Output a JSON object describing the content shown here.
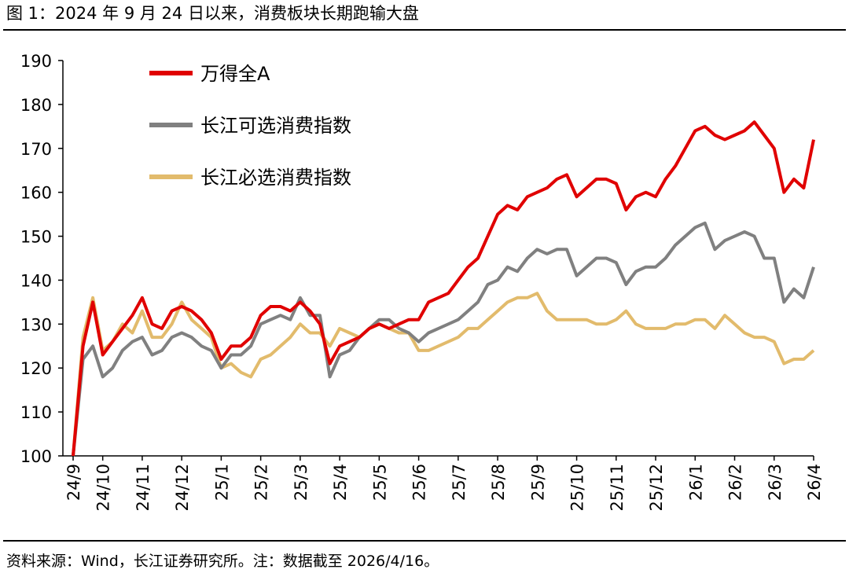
{
  "chart_data": {
    "type": "line",
    "title": "图 1：2024 年 9 月 24 日以来，消费板块长期跑输大盘",
    "source": "资料来源：Wind，长江证券研究所。注：数据截至 2026/4/16。",
    "categories": [
      "24/9",
      null,
      null,
      "24/10",
      null,
      null,
      null,
      "24/11",
      null,
      null,
      null,
      "24/12",
      null,
      null,
      null,
      "25/1",
      null,
      null,
      null,
      "25/2",
      null,
      null,
      null,
      "25/3",
      null,
      null,
      null,
      "25/4",
      null,
      null,
      null,
      "25/5",
      null,
      null,
      null,
      "25/6",
      null,
      null,
      null,
      "25/7",
      null,
      null,
      null,
      "25/8",
      null,
      null,
      null,
      "25/9",
      null,
      null,
      null,
      "25/10",
      null,
      null,
      null,
      "25/11",
      null,
      null,
      null,
      "25/12",
      null,
      null,
      null,
      "26/1",
      null,
      null,
      null,
      "26/2",
      null,
      null,
      null,
      "26/3",
      null,
      null,
      null,
      "26/4"
    ],
    "series": [
      {
        "name": "万得全A",
        "color": "#e00000",
        "values": [
          100,
          125,
          135,
          123,
          126,
          129,
          132,
          136,
          130,
          129,
          133,
          134,
          133,
          131,
          128,
          122,
          125,
          125,
          127,
          132,
          134,
          134,
          133,
          135,
          133,
          130,
          121,
          125,
          126,
          127,
          129,
          130,
          129,
          130,
          131,
          131,
          135,
          136,
          137,
          140,
          143,
          145,
          150,
          155,
          157,
          156,
          159,
          160,
          161,
          163,
          164,
          159,
          161,
          163,
          163,
          162,
          156,
          159,
          160,
          159,
          163,
          166,
          170,
          174,
          175,
          173,
          172,
          173,
          174,
          176,
          173,
          170,
          160,
          163,
          161,
          172
        ]
      },
      {
        "name": "长江可选消费指数",
        "color": "#808080",
        "values": [
          100,
          122,
          125,
          118,
          120,
          124,
          126,
          127,
          123,
          124,
          127,
          128,
          127,
          125,
          124,
          120,
          123,
          123,
          125,
          130,
          131,
          132,
          131,
          136,
          132,
          132,
          118,
          123,
          124,
          127,
          129,
          131,
          131,
          129,
          128,
          126,
          128,
          129,
          130,
          131,
          133,
          135,
          139,
          140,
          143,
          142,
          145,
          147,
          146,
          147,
          147,
          141,
          143,
          145,
          145,
          144,
          139,
          142,
          143,
          143,
          145,
          148,
          150,
          152,
          153,
          147,
          149,
          150,
          151,
          150,
          145,
          145,
          135,
          138,
          136,
          143
        ]
      },
      {
        "name": "长江必选消费指数",
        "color": "#e2bb6c",
        "values": [
          100,
          127,
          136,
          124,
          126,
          130,
          128,
          133,
          127,
          127,
          130,
          135,
          131,
          129,
          127,
          120,
          121,
          119,
          118,
          122,
          123,
          125,
          127,
          130,
          128,
          128,
          125,
          129,
          128,
          127,
          129,
          130,
          129,
          128,
          128,
          124,
          124,
          125,
          126,
          127,
          129,
          129,
          131,
          133,
          135,
          136,
          136,
          137,
          133,
          131,
          131,
          131,
          131,
          130,
          130,
          131,
          133,
          130,
          129,
          129,
          129,
          130,
          130,
          131,
          131,
          129,
          132,
          130,
          128,
          127,
          127,
          126,
          121,
          122,
          122,
          124
        ]
      }
    ],
    "ylim": [
      100,
      190
    ],
    "yticks": [
      100,
      110,
      120,
      130,
      140,
      150,
      160,
      170,
      180,
      190
    ],
    "grid": false,
    "legend": "top-left"
  }
}
